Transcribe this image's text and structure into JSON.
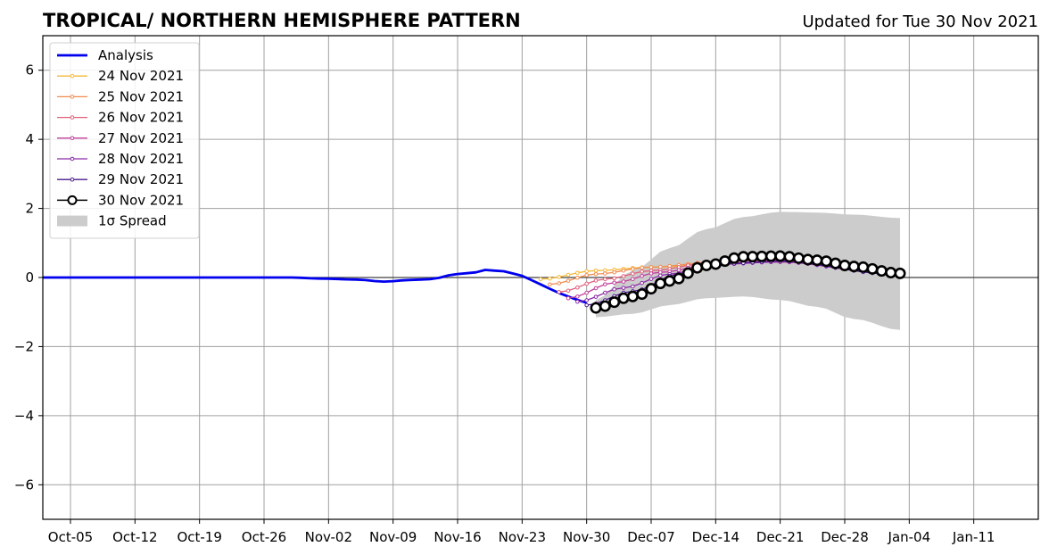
{
  "chart_data": {
    "type": "line",
    "title": "TROPICAL/ NORTHERN HEMISPHERE PATTERN",
    "subtitle": "Updated for Tue 30 Nov 2021",
    "xlabel": "",
    "ylabel": "",
    "x_range": [
      "2021-10-02",
      "2022-01-18"
    ],
    "ylim": [
      -7,
      7
    ],
    "yticks": [
      -6,
      -4,
      -2,
      0,
      2,
      4,
      6
    ],
    "ytick_labels": [
      "−6",
      "−4",
      "−2",
      "0",
      "2",
      "4",
      "6"
    ],
    "xticks": [
      {
        "date": "2021-10-05",
        "label": "Oct-05"
      },
      {
        "date": "2021-10-12",
        "label": "Oct-12"
      },
      {
        "date": "2021-10-19",
        "label": "Oct-19"
      },
      {
        "date": "2021-10-26",
        "label": "Oct-26"
      },
      {
        "date": "2021-11-02",
        "label": "Nov-02"
      },
      {
        "date": "2021-11-09",
        "label": "Nov-09"
      },
      {
        "date": "2021-11-16",
        "label": "Nov-16"
      },
      {
        "date": "2021-11-23",
        "label": "Nov-23"
      },
      {
        "date": "2021-11-30",
        "label": "Nov-30"
      },
      {
        "date": "2021-12-07",
        "label": "Dec-07"
      },
      {
        "date": "2021-12-14",
        "label": "Dec-14"
      },
      {
        "date": "2021-12-21",
        "label": "Dec-21"
      },
      {
        "date": "2021-12-28",
        "label": "Dec-28"
      },
      {
        "date": "2022-01-04",
        "label": "Jan-04"
      },
      {
        "date": "2022-01-11",
        "label": "Jan-11"
      }
    ],
    "grid": true,
    "legend_position": "upper-left",
    "analysis": {
      "name": "Analysis",
      "color": "#0000ee",
      "points": [
        [
          "2021-10-02",
          0.0
        ],
        [
          "2021-10-29",
          0.0
        ],
        [
          "2021-11-01",
          -0.03
        ],
        [
          "2021-11-05",
          -0.06
        ],
        [
          "2021-11-08",
          -0.12
        ],
        [
          "2021-11-11",
          -0.07
        ],
        [
          "2021-11-13",
          -0.05
        ],
        [
          "2021-11-16",
          0.1
        ],
        [
          "2021-11-18",
          0.15
        ],
        [
          "2021-11-19",
          0.22
        ],
        [
          "2021-11-21",
          0.18
        ],
        [
          "2021-11-23",
          0.05
        ],
        [
          "2021-11-25",
          -0.2
        ],
        [
          "2021-11-27",
          -0.45
        ],
        [
          "2021-11-29",
          -0.65
        ],
        [
          "2021-11-30",
          -0.73
        ]
      ]
    },
    "forecasts": [
      {
        "name": "24 Nov 2021",
        "color": "#f5b93a",
        "start": "2021-11-25",
        "end": "2021-12-28",
        "points": [
          [
            "2021-11-25",
            -0.05
          ],
          [
            "2021-12-01",
            0.2
          ],
          [
            "2021-12-07",
            0.3
          ],
          [
            "2021-12-14",
            0.38
          ],
          [
            "2021-12-20",
            0.45
          ],
          [
            "2021-12-28",
            0.4
          ]
        ]
      },
      {
        "name": "25 Nov 2021",
        "color": "#f08c50",
        "start": "2021-11-26",
        "end": "2021-12-29",
        "points": [
          [
            "2021-11-26",
            -0.2
          ],
          [
            "2021-12-01",
            0.1
          ],
          [
            "2021-12-07",
            0.3
          ],
          [
            "2021-12-14",
            0.45
          ],
          [
            "2021-12-20",
            0.55
          ],
          [
            "2021-12-29",
            0.42
          ]
        ]
      },
      {
        "name": "26 Nov 2021",
        "color": "#e0607a",
        "start": "2021-11-27",
        "end": "2021-12-30",
        "points": [
          [
            "2021-11-27",
            -0.42
          ],
          [
            "2021-12-02",
            -0.05
          ],
          [
            "2021-12-07",
            0.2
          ],
          [
            "2021-12-14",
            0.45
          ],
          [
            "2021-12-20",
            0.5
          ],
          [
            "2021-12-30",
            0.3
          ]
        ]
      },
      {
        "name": "27 Nov 2021",
        "color": "#c0409a",
        "start": "2021-11-28",
        "end": "2021-12-31",
        "points": [
          [
            "2021-11-28",
            -0.6
          ],
          [
            "2021-12-03",
            -0.15
          ],
          [
            "2021-12-08",
            0.15
          ],
          [
            "2021-12-14",
            0.4
          ],
          [
            "2021-12-21",
            0.48
          ],
          [
            "2021-12-31",
            0.2
          ]
        ]
      },
      {
        "name": "28 Nov 2021",
        "color": "#8c2aa8",
        "start": "2021-11-29",
        "end": "2022-01-01",
        "points": [
          [
            "2021-11-29",
            -0.7
          ],
          [
            "2021-12-04",
            -0.3
          ],
          [
            "2021-12-09",
            0.1
          ],
          [
            "2021-12-14",
            0.38
          ],
          [
            "2021-12-21",
            0.45
          ],
          [
            "2022-01-01",
            0.15
          ]
        ]
      },
      {
        "name": "29 Nov 2021",
        "color": "#4a1a8c",
        "start": "2021-11-30",
        "end": "2022-01-02",
        "points": [
          [
            "2021-11-30",
            -0.8
          ],
          [
            "2021-12-05",
            -0.4
          ],
          [
            "2021-12-10",
            0.1
          ],
          [
            "2021-12-15",
            0.4
          ],
          [
            "2021-12-21",
            0.48
          ],
          [
            "2022-01-02",
            0.1
          ]
        ]
      },
      {
        "name": "30 Nov 2021",
        "color": "#000000",
        "start": "2021-12-01",
        "end": "2022-01-03",
        "points": [
          [
            "2021-12-01",
            -0.88
          ],
          [
            "2021-12-05",
            -0.55
          ],
          [
            "2021-12-09",
            -0.1
          ],
          [
            "2021-12-13",
            0.35
          ],
          [
            "2021-12-17",
            0.6
          ],
          [
            "2021-12-21",
            0.62
          ],
          [
            "2021-12-25",
            0.5
          ],
          [
            "2021-12-29",
            0.32
          ],
          [
            "2022-01-03",
            0.12
          ]
        ]
      }
    ],
    "spread": {
      "name": "1σ Spread",
      "color": "#cccccc",
      "start": "2021-12-01",
      "end": "2022-01-03",
      "upper": [
        [
          "2021-12-01",
          -0.65
        ],
        [
          "2021-12-05",
          0.2
        ],
        [
          "2021-12-09",
          0.85
        ],
        [
          "2021-12-13",
          1.4
        ],
        [
          "2021-12-17",
          1.75
        ],
        [
          "2021-12-21",
          1.9
        ],
        [
          "2021-12-25",
          1.88
        ],
        [
          "2021-12-29",
          1.82
        ],
        [
          "2022-01-03",
          1.72
        ]
      ],
      "lower": [
        [
          "2021-12-01",
          -1.15
        ],
        [
          "2021-12-05",
          -1.05
        ],
        [
          "2021-12-09",
          -0.8
        ],
        [
          "2021-12-13",
          -0.6
        ],
        [
          "2021-12-17",
          -0.55
        ],
        [
          "2021-12-21",
          -0.65
        ],
        [
          "2021-12-25",
          -0.85
        ],
        [
          "2021-12-29",
          -1.2
        ],
        [
          "2022-01-03",
          -1.52
        ]
      ]
    }
  }
}
